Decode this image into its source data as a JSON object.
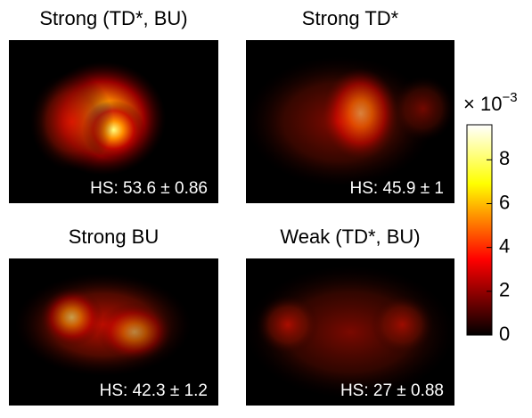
{
  "chart_data": [
    {
      "type": "heatmap",
      "title": "Strong (TD*, BU)",
      "annotation": "HS: 53.6 ± 0.86"
    },
    {
      "type": "heatmap",
      "title": "Strong TD*",
      "annotation": "HS: 45.9 ± 1"
    },
    {
      "type": "heatmap",
      "title": "Strong BU",
      "annotation": "HS: 42.3 ± 1.2"
    },
    {
      "type": "heatmap",
      "title": "Weak (TD*, BU)",
      "annotation": "HS: 27 ± 0.88"
    }
  ],
  "colorbar": {
    "label": "× 10",
    "exponent": "−3",
    "ylim": [
      0,
      9.6
    ],
    "yticks": [
      0,
      2,
      4,
      6,
      8
    ]
  }
}
